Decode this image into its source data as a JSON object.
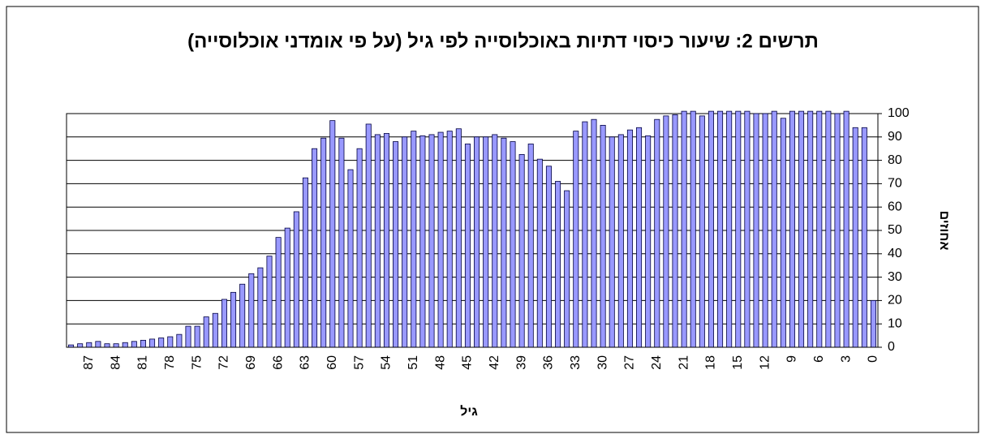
{
  "chart_data": {
    "type": "bar",
    "title": "תרשים 2: שיעור כיסוי דתיות באוכלוסייה לפי גיל (על פי אומדני אוכלוסייה)",
    "x_label": "גיל",
    "y_label": "אחוזים",
    "categories": [
      null,
      null,
      "87",
      null,
      null,
      "84",
      null,
      null,
      "81",
      null,
      null,
      "78",
      null,
      null,
      "75",
      null,
      null,
      "72",
      null,
      null,
      "69",
      null,
      null,
      "66",
      null,
      null,
      "63",
      null,
      null,
      "60",
      null,
      null,
      "57",
      null,
      null,
      "54",
      null,
      null,
      "51",
      null,
      null,
      "48",
      null,
      null,
      "45",
      null,
      null,
      "42",
      null,
      null,
      "39",
      null,
      null,
      "36",
      null,
      null,
      "33",
      null,
      null,
      "30",
      null,
      null,
      "27",
      null,
      null,
      "24",
      null,
      null,
      "21",
      null,
      null,
      "18",
      null,
      null,
      "15",
      null,
      null,
      "12",
      null,
      null,
      "9",
      null,
      null,
      "6",
      null,
      null,
      "3",
      null,
      null,
      "0"
    ],
    "values": [
      1,
      1.5,
      2,
      2.5,
      1.5,
      1.5,
      2,
      2.5,
      3,
      3.5,
      4,
      4.5,
      5.5,
      9,
      9,
      13,
      14.5,
      20.5,
      23.5,
      27,
      31.5,
      34,
      39,
      47,
      51,
      58,
      72.5,
      85,
      89.5,
      97,
      89.5,
      76,
      85,
      95.5,
      91,
      91.5,
      88,
      90,
      92.5,
      90.5,
      91,
      92,
      92.5,
      93.5,
      87,
      90,
      90,
      91,
      89.5,
      88,
      82.5,
      87,
      80.5,
      77.5,
      71,
      67,
      92.5,
      96.5,
      97.5,
      95,
      90,
      91,
      93,
      94,
      90.5,
      97.5,
      99,
      99.5,
      101,
      101,
      99,
      101,
      101,
      101,
      101,
      101,
      100,
      100,
      101,
      98,
      101,
      101,
      101,
      101,
      101,
      100,
      101,
      94,
      94,
      20
    ],
    "color": "#9999ff",
    "ylim": [
      0,
      100
    ],
    "yticks": [
      0,
      10,
      20,
      30,
      40,
      50,
      60,
      70,
      80,
      90,
      100
    ],
    "grid": true,
    "y_axis_side": "right"
  }
}
